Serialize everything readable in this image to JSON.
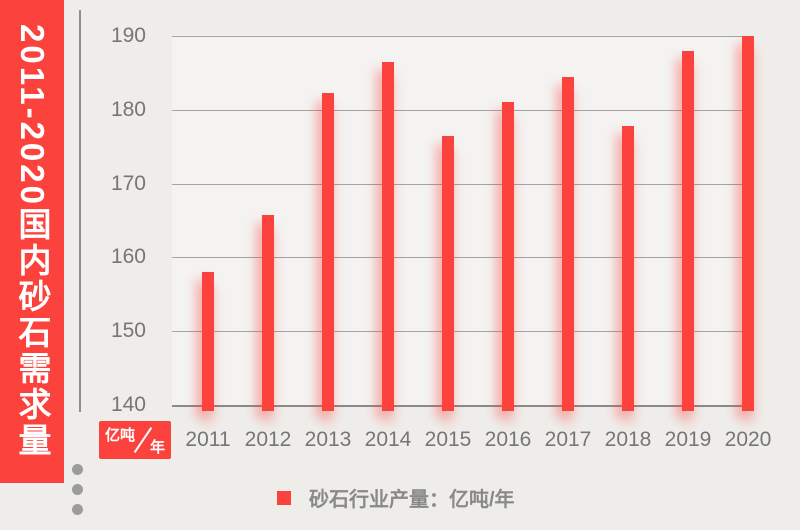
{
  "banner": {
    "title": "2011-2020国内砂石需求量"
  },
  "unit_badge": {
    "numerator": "亿吨",
    "denominator": "年"
  },
  "legend": {
    "label": "砂石行业产量：亿吨/年"
  },
  "colors": {
    "accent_red": "#fb423d",
    "background": "#efedea",
    "grid_gray": "#a3a3a3",
    "text_gray": "#767676"
  },
  "chart_data": {
    "type": "bar",
    "title": "2011-2020国内砂石需求量",
    "categories": [
      "2011",
      "2012",
      "2013",
      "2014",
      "2015",
      "2016",
      "2017",
      "2018",
      "2019",
      "2020"
    ],
    "values": [
      158,
      165.8,
      182.3,
      186.5,
      176.4,
      181,
      184.5,
      177.8,
      188,
      190
    ],
    "series_name": "砂石行业产量",
    "unit": "亿吨/年",
    "xlabel": "",
    "ylabel": "亿吨/年",
    "ylim": [
      140,
      190
    ],
    "yticks": [
      140,
      150,
      160,
      170,
      180,
      190
    ],
    "grid": true,
    "legend_position": "bottom",
    "bar_color": "#fb423d"
  }
}
